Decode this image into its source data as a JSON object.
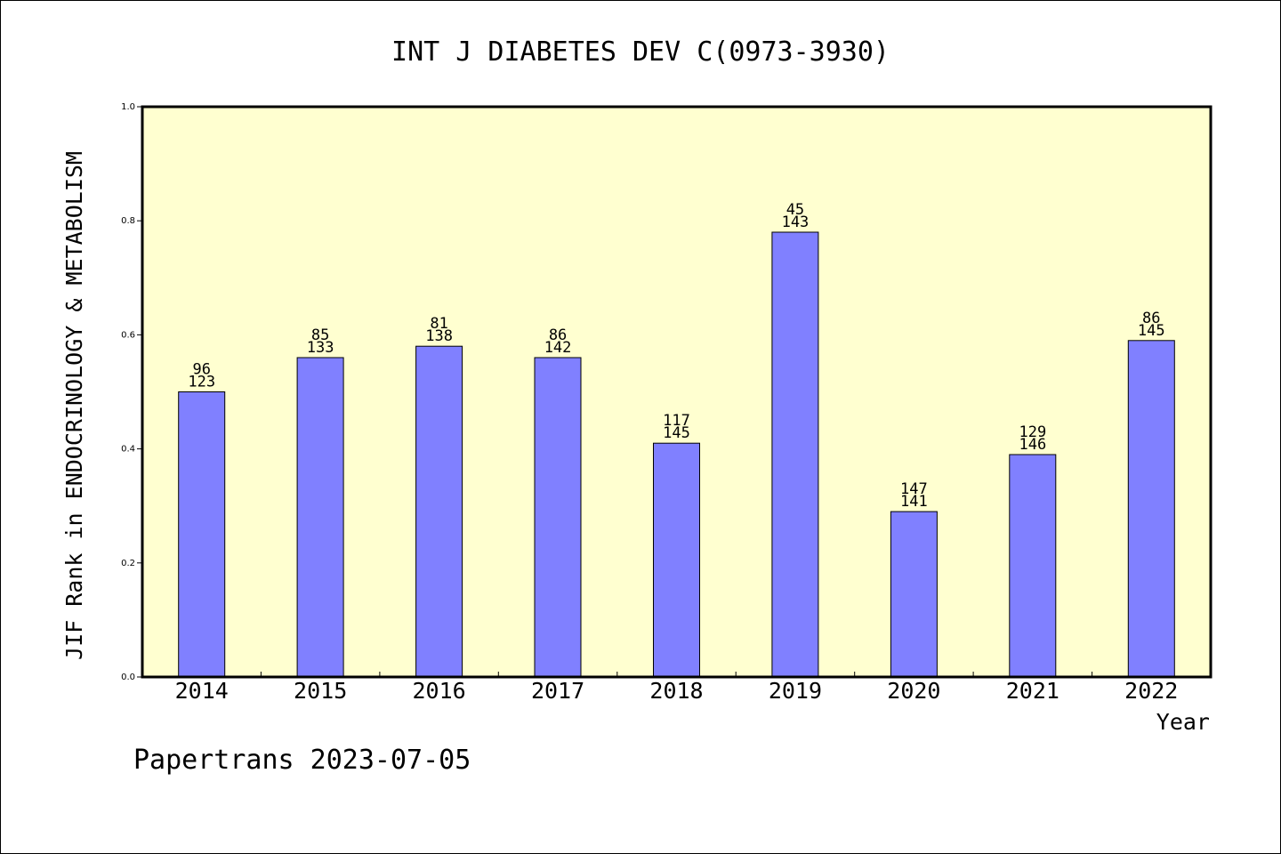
{
  "chart_data": {
    "type": "bar",
    "title": "INT J DIABETES DEV C(0973-3930)",
    "xlabel": "Year",
    "ylabel": "JIF Rank in ENDOCRINOLOGY & METABOLISM",
    "ylim": [
      0,
      1
    ],
    "yticks": [
      "0.0",
      "0.2",
      "0.4",
      "0.6",
      "0.8",
      "1.0"
    ],
    "categories": [
      "2014",
      "2015",
      "2016",
      "2017",
      "2018",
      "2019",
      "2020",
      "2021",
      "2022"
    ],
    "values": [
      0.5,
      0.56,
      0.58,
      0.56,
      0.41,
      0.78,
      0.29,
      0.39,
      0.59
    ],
    "rank_labels": [
      "96",
      "85",
      "81",
      "86",
      "117",
      "45",
      "147",
      "129",
      "86"
    ],
    "total_labels": [
      "123",
      "133",
      "138",
      "142",
      "145",
      "143",
      "141",
      "146",
      "145"
    ],
    "grid": false,
    "colors": {
      "plot_background": "#ffffd0",
      "bar_fill": "#8080ff",
      "bar_stroke": "#000000"
    }
  },
  "footer": {
    "credit": "Papertrans 2023-07-05"
  }
}
